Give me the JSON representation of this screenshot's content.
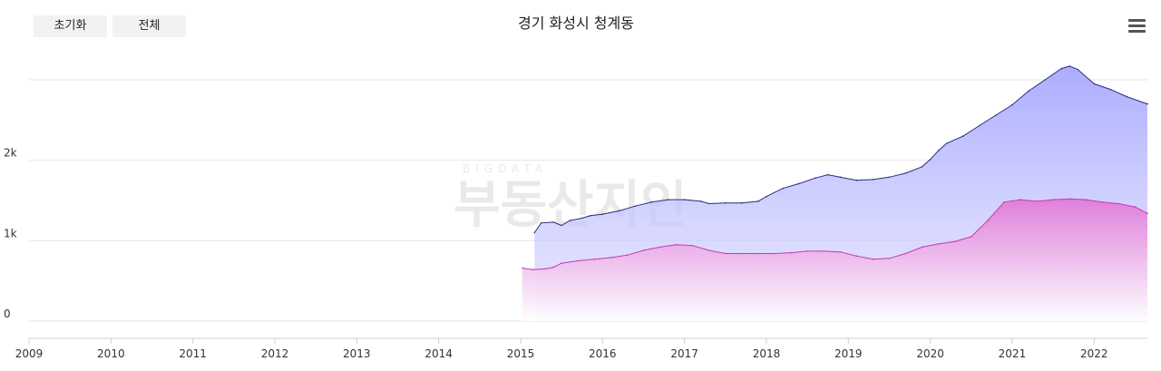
{
  "toolbar": {
    "reset_label": "초기화",
    "all_label": "전체"
  },
  "menu_icon": "hamburger-menu-icon",
  "colors": {
    "upper_line": "#2a2f7a",
    "upper_fill": "#a8a8ff",
    "lower_line": "#c43ab8",
    "lower_fill": "#e07ad8",
    "grid": "#e6e6e6"
  },
  "chart_data": {
    "type": "area",
    "title": "경기 화성시 청계동",
    "xlabel": "",
    "ylabel": "",
    "x_ticks": [
      "2009",
      "2010",
      "2011",
      "2012",
      "2013",
      "2014",
      "2015",
      "2016",
      "2017",
      "2018",
      "2019",
      "2020",
      "2021",
      "2022"
    ],
    "y_ticks": [
      {
        "value": 0,
        "label": "0"
      },
      {
        "value": 1000,
        "label": "1k"
      },
      {
        "value": 2000,
        "label": "2k"
      }
    ],
    "xlim": [
      2009.0,
      2022.65
    ],
    "ylim": [
      0,
      3000
    ],
    "grid": true,
    "series": [
      {
        "x": [
          2015.17,
          2015.25,
          2015.4,
          2015.5,
          2015.6,
          2015.75,
          2015.85,
          2016.0,
          2016.2,
          2016.4,
          2016.6,
          2016.8,
          2017.0,
          2017.2,
          2017.3,
          2017.5,
          2017.7,
          2017.9,
          2018.0,
          2018.2,
          2018.4,
          2018.6,
          2018.75,
          2018.9,
          2019.1,
          2019.3,
          2019.5,
          2019.7,
          2019.9,
          2020.0,
          2020.1,
          2020.2,
          2020.4,
          2020.6,
          2020.8,
          2021.0,
          2021.2,
          2021.4,
          2021.6,
          2021.7,
          2021.8,
          2022.0,
          2022.2,
          2022.4,
          2022.65
        ],
        "y": [
          1100,
          1220,
          1230,
          1190,
          1250,
          1280,
          1310,
          1330,
          1370,
          1430,
          1480,
          1510,
          1510,
          1490,
          1460,
          1470,
          1470,
          1490,
          1550,
          1650,
          1710,
          1780,
          1820,
          1790,
          1750,
          1760,
          1790,
          1840,
          1920,
          2010,
          2120,
          2210,
          2300,
          2430,
          2560,
          2690,
          2860,
          3000,
          3140,
          3170,
          3130,
          2950,
          2880,
          2790,
          2700
        ]
      },
      {
        "x": [
          2015.02,
          2015.15,
          2015.3,
          2015.4,
          2015.5,
          2015.7,
          2015.9,
          2016.1,
          2016.3,
          2016.5,
          2016.7,
          2016.9,
          2017.1,
          2017.3,
          2017.5,
          2017.7,
          2017.9,
          2018.1,
          2018.3,
          2018.5,
          2018.7,
          2018.9,
          2019.1,
          2019.3,
          2019.5,
          2019.7,
          2019.9,
          2020.1,
          2020.3,
          2020.5,
          2020.7,
          2020.9,
          2021.1,
          2021.3,
          2021.5,
          2021.7,
          2021.9,
          2022.1,
          2022.3,
          2022.5,
          2022.65
        ],
        "y": [
          660,
          640,
          650,
          670,
          720,
          750,
          770,
          790,
          820,
          880,
          920,
          950,
          940,
          880,
          840,
          840,
          840,
          840,
          850,
          870,
          870,
          860,
          810,
          770,
          780,
          840,
          920,
          960,
          990,
          1050,
          1250,
          1480,
          1510,
          1490,
          1510,
          1520,
          1510,
          1480,
          1460,
          1420,
          1340
        ]
      }
    ]
  }
}
